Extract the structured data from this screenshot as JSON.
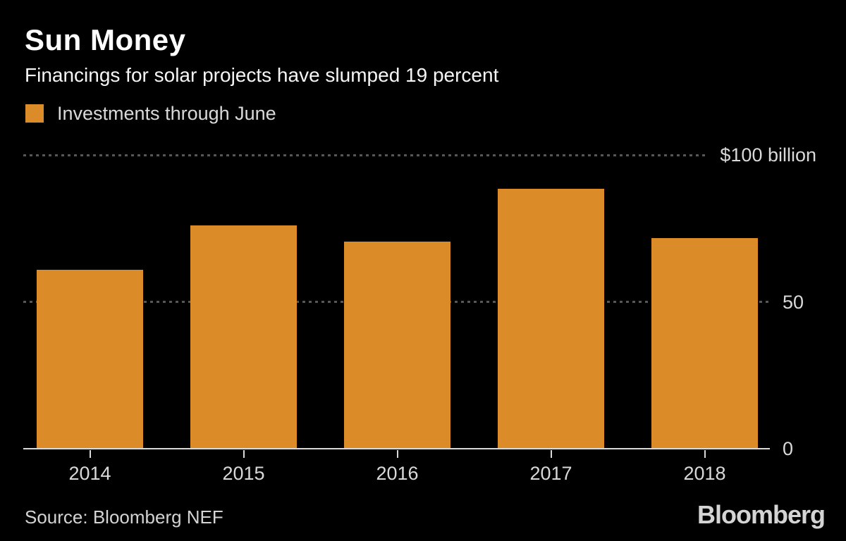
{
  "chart_data": {
    "type": "bar",
    "title": "Sun Money",
    "subtitle": "Financings for solar projects have slumped 19 percent",
    "legend": {
      "label": "Investments through June",
      "position": "top-left"
    },
    "categories": [
      "2014",
      "2015",
      "2016",
      "2017",
      "2018"
    ],
    "values": [
      61,
      76,
      70.5,
      88.4,
      71.6
    ],
    "unit": "billion USD",
    "ylim": [
      0,
      100
    ],
    "gridlines": [
      {
        "value": 100,
        "label": "$100 billion",
        "style": "dotted"
      },
      {
        "value": 50,
        "label": "50",
        "style": "dotted"
      },
      {
        "value": 0,
        "label": "0",
        "style": "solid"
      }
    ],
    "grid": "horizontal",
    "bar_color": "#DB8B27"
  },
  "footer": {
    "source": "Source: Bloomberg NEF",
    "brand": "Bloomberg"
  },
  "colors": {
    "background": "#000000",
    "bar": "#DB8B27",
    "grid_dotted": "#565656",
    "axis_line": "#D9D9D9",
    "text_primary": "#FFFFFF",
    "text_secondary": "#D9D9D9"
  }
}
